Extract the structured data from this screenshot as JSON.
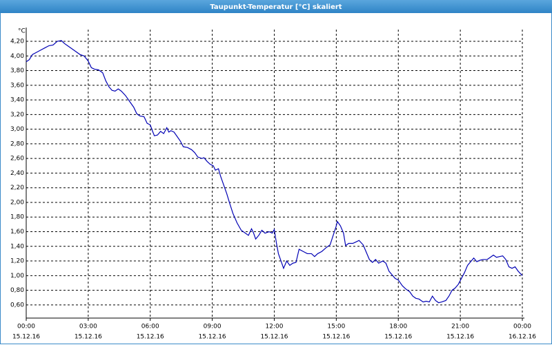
{
  "chart_data": {
    "type": "line",
    "title": "Taupunkt-Temperatur [°C] skaliert",
    "y_unit": "°C",
    "color": "#0000b4",
    "grid": true,
    "xlim": [
      0,
      24
    ],
    "xticks": [
      {
        "value": 0,
        "label": "00:00"
      },
      {
        "value": 3,
        "label": "03:00"
      },
      {
        "value": 6,
        "label": "06:00"
      },
      {
        "value": 9,
        "label": "09:00"
      },
      {
        "value": 12,
        "label": "12:00"
      },
      {
        "value": 15,
        "label": "15:00"
      },
      {
        "value": 18,
        "label": "18:00"
      },
      {
        "value": 21,
        "label": "21:00"
      },
      {
        "value": 24,
        "label": "00:00"
      }
    ],
    "xtick_dates": [
      "15.12.16",
      "15.12.16",
      "15.12.16",
      "15.12.16",
      "15.12.16",
      "15.12.16",
      "15.12.16",
      "15.12.16",
      "16.12.16"
    ],
    "ylim": [
      0.42,
      4.36
    ],
    "yticks": [
      {
        "value": 0.6,
        "label": "0,60"
      },
      {
        "value": 0.8,
        "label": "0,80"
      },
      {
        "value": 1.0,
        "label": "1,00"
      },
      {
        "value": 1.2,
        "label": "1,20"
      },
      {
        "value": 1.4,
        "label": "1,40"
      },
      {
        "value": 1.6,
        "label": "1,60"
      },
      {
        "value": 1.8,
        "label": "1,80"
      },
      {
        "value": 2.0,
        "label": "2,00"
      },
      {
        "value": 2.2,
        "label": "2,20"
      },
      {
        "value": 2.4,
        "label": "2,40"
      },
      {
        "value": 2.6,
        "label": "2,60"
      },
      {
        "value": 2.8,
        "label": "2,80"
      },
      {
        "value": 3.0,
        "label": "3,00"
      },
      {
        "value": 3.2,
        "label": "3,20"
      },
      {
        "value": 3.4,
        "label": "3,40"
      },
      {
        "value": 3.6,
        "label": "3,60"
      },
      {
        "value": 3.8,
        "label": "3,80"
      },
      {
        "value": 4.0,
        "label": "4,00"
      },
      {
        "value": 4.2,
        "label": "4,20"
      }
    ],
    "x": [
      0,
      0.15,
      0.3,
      0.5,
      0.7,
      0.9,
      1.1,
      1.3,
      1.5,
      1.7,
      1.85,
      2.0,
      2.2,
      2.4,
      2.6,
      2.8,
      3.0,
      3.15,
      3.3,
      3.5,
      3.7,
      3.85,
      4.0,
      4.15,
      4.3,
      4.45,
      4.6,
      4.8,
      5.0,
      5.2,
      5.35,
      5.5,
      5.7,
      5.85,
      6.0,
      6.1,
      6.2,
      6.35,
      6.5,
      6.65,
      6.8,
      6.9,
      7.0,
      7.15,
      7.3,
      7.45,
      7.6,
      7.8,
      8.0,
      8.15,
      8.3,
      8.5,
      8.6,
      8.75,
      8.9,
      9.05,
      9.15,
      9.3,
      9.4,
      9.55,
      9.7,
      9.85,
      10.0,
      10.2,
      10.4,
      10.6,
      10.75,
      10.9,
      11.0,
      11.1,
      11.25,
      11.4,
      11.55,
      11.75,
      11.9,
      12.0,
      12.1,
      12.2,
      12.35,
      12.45,
      12.6,
      12.75,
      12.9,
      13.05,
      13.2,
      13.4,
      13.6,
      13.8,
      13.95,
      14.1,
      14.3,
      14.5,
      14.7,
      14.85,
      15.0,
      15.05,
      15.2,
      15.35,
      15.45,
      15.6,
      15.8,
      15.95,
      16.1,
      16.3,
      16.45,
      16.6,
      16.75,
      16.9,
      17.05,
      17.25,
      17.4,
      17.55,
      17.7,
      17.85,
      18.0,
      18.2,
      18.35,
      18.55,
      18.7,
      18.85,
      19.0,
      19.2,
      19.35,
      19.5,
      19.65,
      19.8,
      19.95,
      20.1,
      20.3,
      20.45,
      20.6,
      20.75,
      20.9,
      21.05,
      21.2,
      21.35,
      21.5,
      21.65,
      21.8,
      21.95,
      22.1,
      22.3,
      22.45,
      22.6,
      22.75,
      22.9,
      23.05,
      23.2,
      23.35,
      23.5,
      23.65,
      23.8,
      24.0
    ],
    "values": [
      3.92,
      3.95,
      4.02,
      4.05,
      4.08,
      4.11,
      4.14,
      4.15,
      4.2,
      4.21,
      4.17,
      4.14,
      4.1,
      4.06,
      4.02,
      4.0,
      3.93,
      3.84,
      3.82,
      3.81,
      3.77,
      3.66,
      3.58,
      3.53,
      3.52,
      3.55,
      3.52,
      3.46,
      3.38,
      3.3,
      3.21,
      3.18,
      3.17,
      3.08,
      3.06,
      2.98,
      2.91,
      2.92,
      2.97,
      2.94,
      3.02,
      2.96,
      2.98,
      2.96,
      2.9,
      2.84,
      2.76,
      2.75,
      2.72,
      2.68,
      2.62,
      2.6,
      2.61,
      2.56,
      2.52,
      2.5,
      2.44,
      2.46,
      2.36,
      2.24,
      2.12,
      1.98,
      1.85,
      1.72,
      1.62,
      1.58,
      1.55,
      1.64,
      1.58,
      1.5,
      1.55,
      1.62,
      1.58,
      1.6,
      1.58,
      1.63,
      1.45,
      1.3,
      1.18,
      1.1,
      1.2,
      1.14,
      1.17,
      1.18,
      1.36,
      1.33,
      1.3,
      1.3,
      1.26,
      1.3,
      1.33,
      1.38,
      1.42,
      1.55,
      1.68,
      1.74,
      1.68,
      1.58,
      1.41,
      1.44,
      1.44,
      1.46,
      1.48,
      1.42,
      1.32,
      1.22,
      1.18,
      1.22,
      1.17,
      1.2,
      1.17,
      1.06,
      1.01,
      0.96,
      0.94,
      0.86,
      0.82,
      0.78,
      0.72,
      0.69,
      0.68,
      0.64,
      0.65,
      0.64,
      0.72,
      0.66,
      0.63,
      0.64,
      0.66,
      0.72,
      0.8,
      0.83,
      0.88,
      0.96,
      1.04,
      1.14,
      1.19,
      1.24,
      1.19,
      1.21,
      1.22,
      1.22,
      1.25,
      1.28,
      1.25,
      1.26,
      1.27,
      1.22,
      1.12,
      1.1,
      1.12,
      1.06,
      1.0
    ]
  }
}
